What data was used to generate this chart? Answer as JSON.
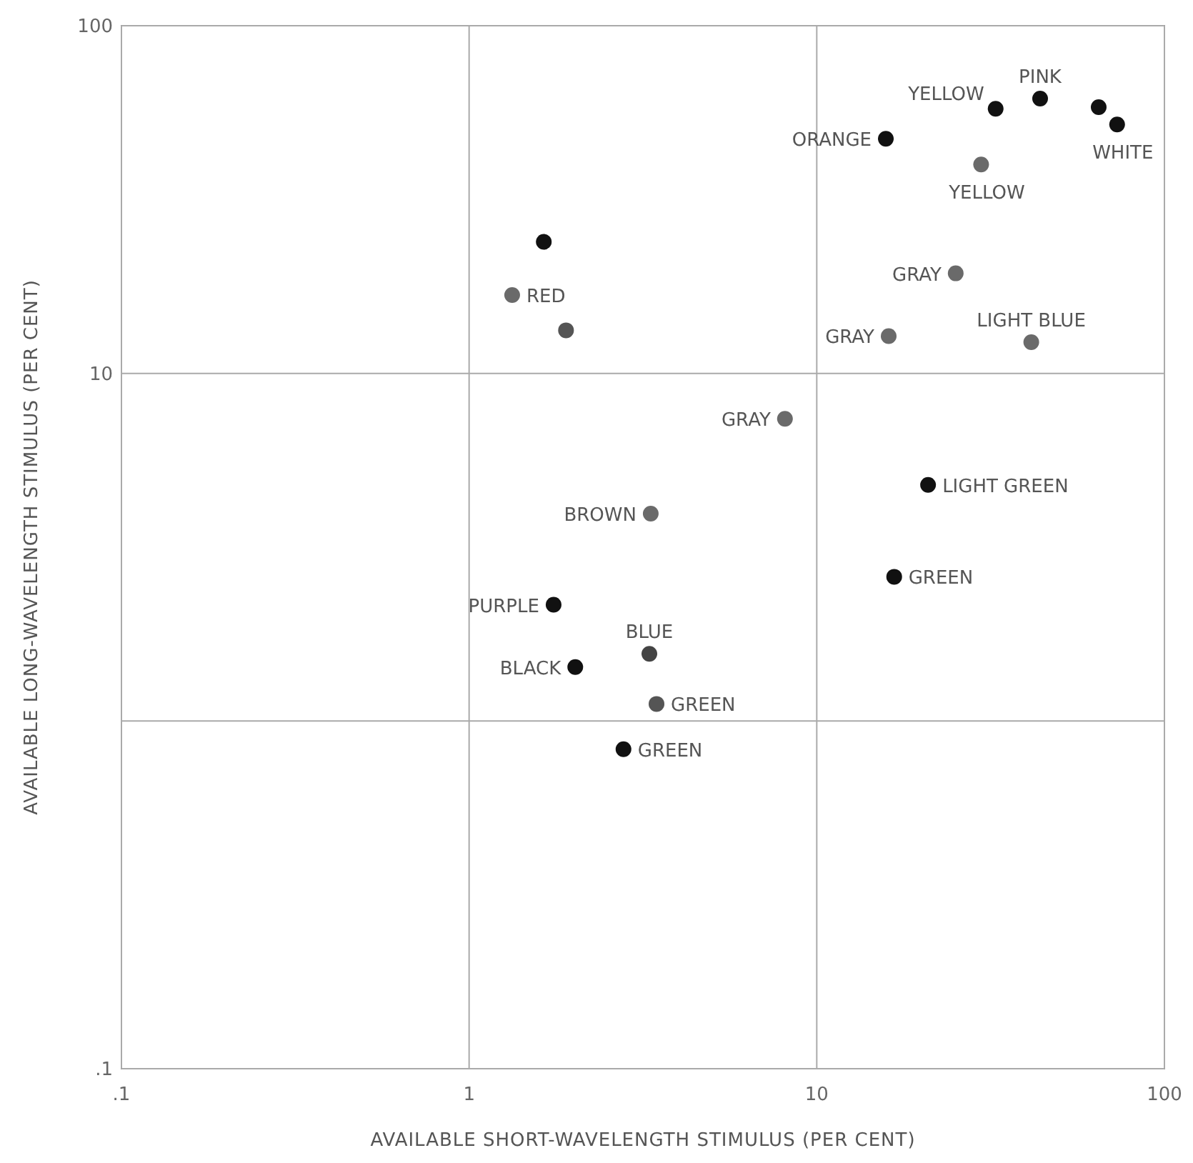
{
  "chart_data": {
    "type": "scatter",
    "xlabel": "AVAILABLE SHORT-WAVELENGTH STIMULUS (PER CENT)",
    "ylabel": "AVAILABLE LONG-WAVELENGTH STIMULUS (PER CENT)",
    "log": "xy",
    "grid": true,
    "marker": "circle",
    "xlim": [
      0.1,
      100
    ],
    "ylim": [
      0.1,
      100
    ],
    "xticks": [
      {
        "value": 0.1,
        "label": ".1"
      },
      1,
      10,
      100
    ],
    "yticks": [
      {
        "value": 0.1,
        "label": ".1"
      },
      {
        "value": 1,
        "label": null
      },
      10,
      100
    ],
    "x": [
      32.7,
      43.9,
      64.7,
      73.1,
      15.8,
      1.64,
      20.9,
      16.7,
      1.75,
      2.02,
      2.78,
      29.7,
      1.33,
      1.9,
      25.1,
      16.1,
      41.4,
      8.1,
      3.33,
      3.3,
      3.46
    ],
    "values": [
      57.7,
      61.7,
      58.3,
      52.0,
      47.3,
      23.9,
      4.78,
      2.6,
      2.16,
      1.43,
      0.83,
      39.9,
      16.8,
      13.3,
      19.4,
      12.8,
      12.3,
      7.4,
      3.95,
      1.56,
      1.12
    ],
    "colors": [
      "#111111",
      "#111111",
      "#111111",
      "#111111",
      "#111111",
      "#111111",
      "#111111",
      "#111111",
      "#111111",
      "#111111",
      "#111111",
      "#6a6a6a",
      "#6a6a6a",
      "#555555",
      "#6a6a6a",
      "#6a6a6a",
      "#6a6a6a",
      "#6a6a6a",
      "#6a6a6a",
      "#444444",
      "#555555"
    ],
    "annotations": [
      {
        "text": "YELLOW",
        "x": 32.7,
        "y": 57.7
      },
      {
        "text": "PINK",
        "x": 43.9,
        "y": 61.7
      },
      {
        "text": "WHITE",
        "x": 73.1,
        "y": 52.0
      },
      {
        "text": "ORANGE",
        "x": 15.8,
        "y": 47.3
      },
      {
        "text": "YELLOW",
        "x": 29.7,
        "y": 39.9
      },
      {
        "text": "RED",
        "x": 1.33,
        "y": 16.8
      },
      {
        "text": "GRAY",
        "x": 25.1,
        "y": 19.4
      },
      {
        "text": "GRAY",
        "x": 16.1,
        "y": 12.8
      },
      {
        "text": "LIGHT BLUE",
        "x": 41.4,
        "y": 12.3
      },
      {
        "text": "GRAY",
        "x": 8.1,
        "y": 7.4
      },
      {
        "text": "LIGHT GREEN",
        "x": 20.9,
        "y": 4.78
      },
      {
        "text": "BROWN",
        "x": 3.33,
        "y": 3.95
      },
      {
        "text": "GREEN",
        "x": 16.7,
        "y": 2.6
      },
      {
        "text": "PURPLE",
        "x": 1.75,
        "y": 2.16
      },
      {
        "text": "BLUE",
        "x": 3.3,
        "y": 1.56
      },
      {
        "text": "BLACK",
        "x": 2.02,
        "y": 1.43
      },
      {
        "text": "GREEN",
        "x": 3.46,
        "y": 1.12
      },
      {
        "text": "GREEN",
        "x": 2.78,
        "y": 0.83
      }
    ]
  }
}
